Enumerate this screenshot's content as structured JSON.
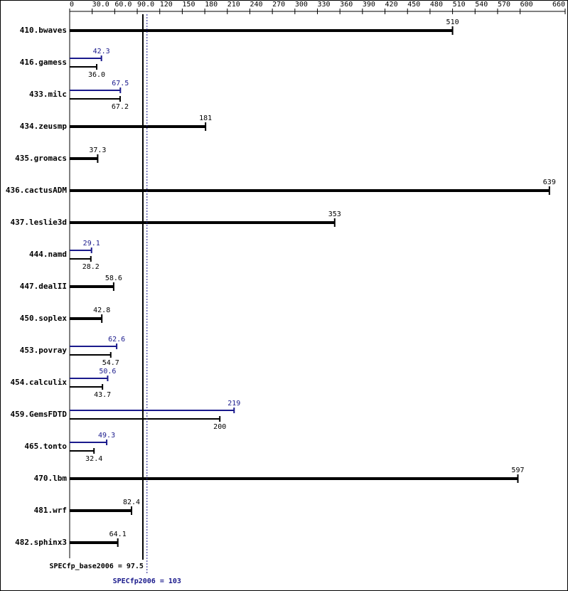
{
  "chart_data": {
    "type": "bar",
    "categories": [
      "410.bwaves",
      "416.gamess",
      "433.milc",
      "434.zeusmp",
      "435.gromacs",
      "436.cactusADM",
      "437.leslie3d",
      "444.namd",
      "447.dealII",
      "450.soplex",
      "453.povray",
      "454.calculix",
      "459.GemsFDTD",
      "465.tonto",
      "470.lbm",
      "481.wrf",
      "482.sphinx3"
    ],
    "series": [
      {
        "color": "#000000",
        "values": [
          510,
          36.0,
          67.2,
          181,
          37.3,
          639,
          353,
          28.2,
          58.6,
          42.8,
          54.7,
          43.7,
          200,
          32.4,
          597,
          82.4,
          64.1
        ],
        "value_labels": [
          "510",
          "36.0",
          "67.2",
          "181",
          "37.3",
          "639",
          "353",
          "28.2",
          "58.6",
          "42.8",
          "54.7",
          "43.7",
          "200",
          "32.4",
          "597",
          "82.4",
          "64.1"
        ]
      },
      {
        "color": "#1a1a8c",
        "values": [
          null,
          42.3,
          67.5,
          null,
          null,
          null,
          null,
          29.1,
          null,
          null,
          62.6,
          50.6,
          219,
          49.3,
          null,
          null,
          null
        ],
        "value_labels": [
          null,
          "42.3",
          "67.5",
          null,
          null,
          null,
          null,
          "29.1",
          null,
          null,
          "62.6",
          "50.6",
          "219",
          "49.3",
          null,
          null,
          null
        ]
      }
    ],
    "xlim": [
      0,
      660
    ],
    "xticks": [
      0,
      {
        "value": 30,
        "label": "30.0"
      },
      {
        "value": 60,
        "label": "60.0"
      },
      {
        "value": 90,
        "label": "90.0"
      },
      120,
      150,
      180,
      210,
      240,
      270,
      300,
      330,
      360,
      390,
      420,
      450,
      480,
      510,
      540,
      570,
      600,
      660
    ],
    "reference_lines": [
      {
        "value": 97.5,
        "label": "SPECfp_base2006 = 97.5",
        "color": "#000000",
        "style": "solid"
      },
      {
        "value": 103,
        "label": "SPECfp2006 = 103",
        "color": "#1a1a8c",
        "style": "dotted"
      }
    ]
  }
}
